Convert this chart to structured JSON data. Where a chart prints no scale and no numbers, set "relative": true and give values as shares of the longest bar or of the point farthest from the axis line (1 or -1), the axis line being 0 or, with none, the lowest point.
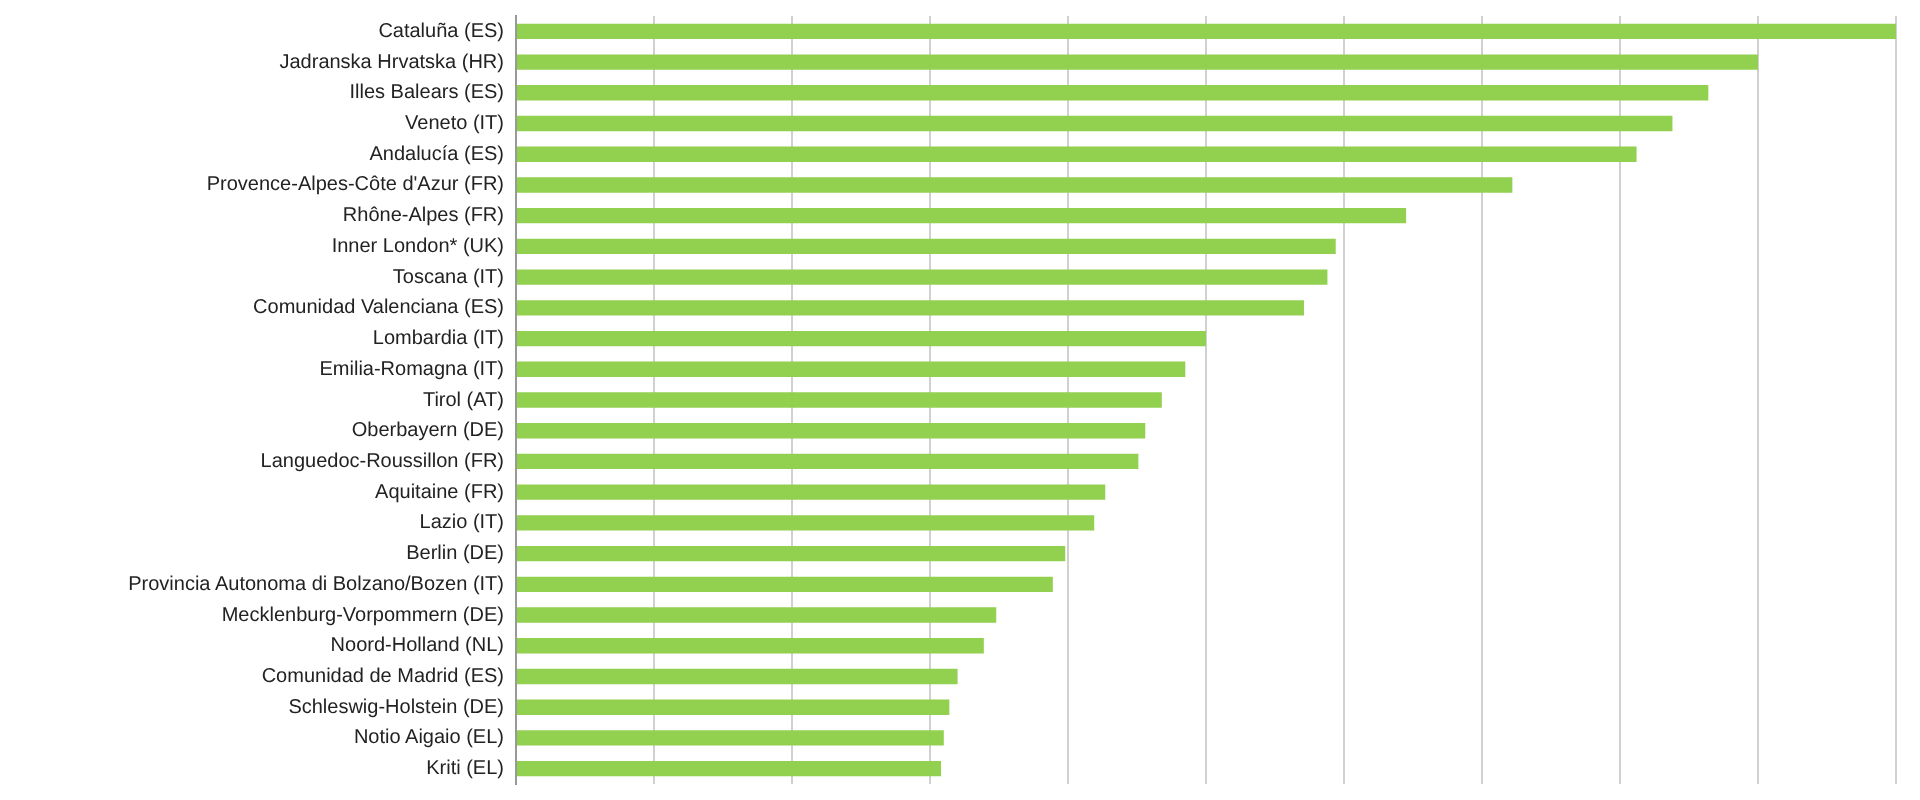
{
  "chart_data": {
    "type": "bar",
    "orientation": "horizontal",
    "relative": true,
    "grid": "x",
    "legend": false,
    "categories": [
      "Cataluña (ES)",
      "Jadranska Hrvatska (HR)",
      "Illes Balears (ES)",
      "Veneto (IT)",
      "Andalucía (ES)",
      "Provence-Alpes-Côte d'Azur (FR)",
      "Rhône-Alpes (FR)",
      "Inner London* (UK)",
      "Toscana (IT)",
      "Comunidad Valenciana (ES)",
      "Lombardia (IT)",
      "Emilia-Romagna (IT)",
      "Tirol (AT)",
      "Oberbayern (DE)",
      "Languedoc-Roussillon (FR)",
      "Aquitaine (FR)",
      "Lazio (IT)",
      "Berlin (DE)",
      "Provincia Autonoma di Bolzano/Bozen (IT)",
      "Mecklenburg-Vorpommern (DE)",
      "Noord-Holland (NL)",
      "Comunidad de Madrid (ES)",
      "Schleswig-Holstein (DE)",
      "Notio Aigaio (EL)",
      "Kriti (EL)"
    ],
    "color": "#92d050",
    "values": [
      1,
      0.9,
      0.864,
      0.838,
      0.812,
      0.722,
      0.645,
      0.594,
      0.588,
      0.571,
      0.5,
      0.485,
      0.468,
      0.456,
      0.451,
      0.427,
      0.419,
      0.398,
      0.389,
      0.348,
      0.339,
      0.32,
      0.314,
      0.31,
      0.308
    ]
  }
}
